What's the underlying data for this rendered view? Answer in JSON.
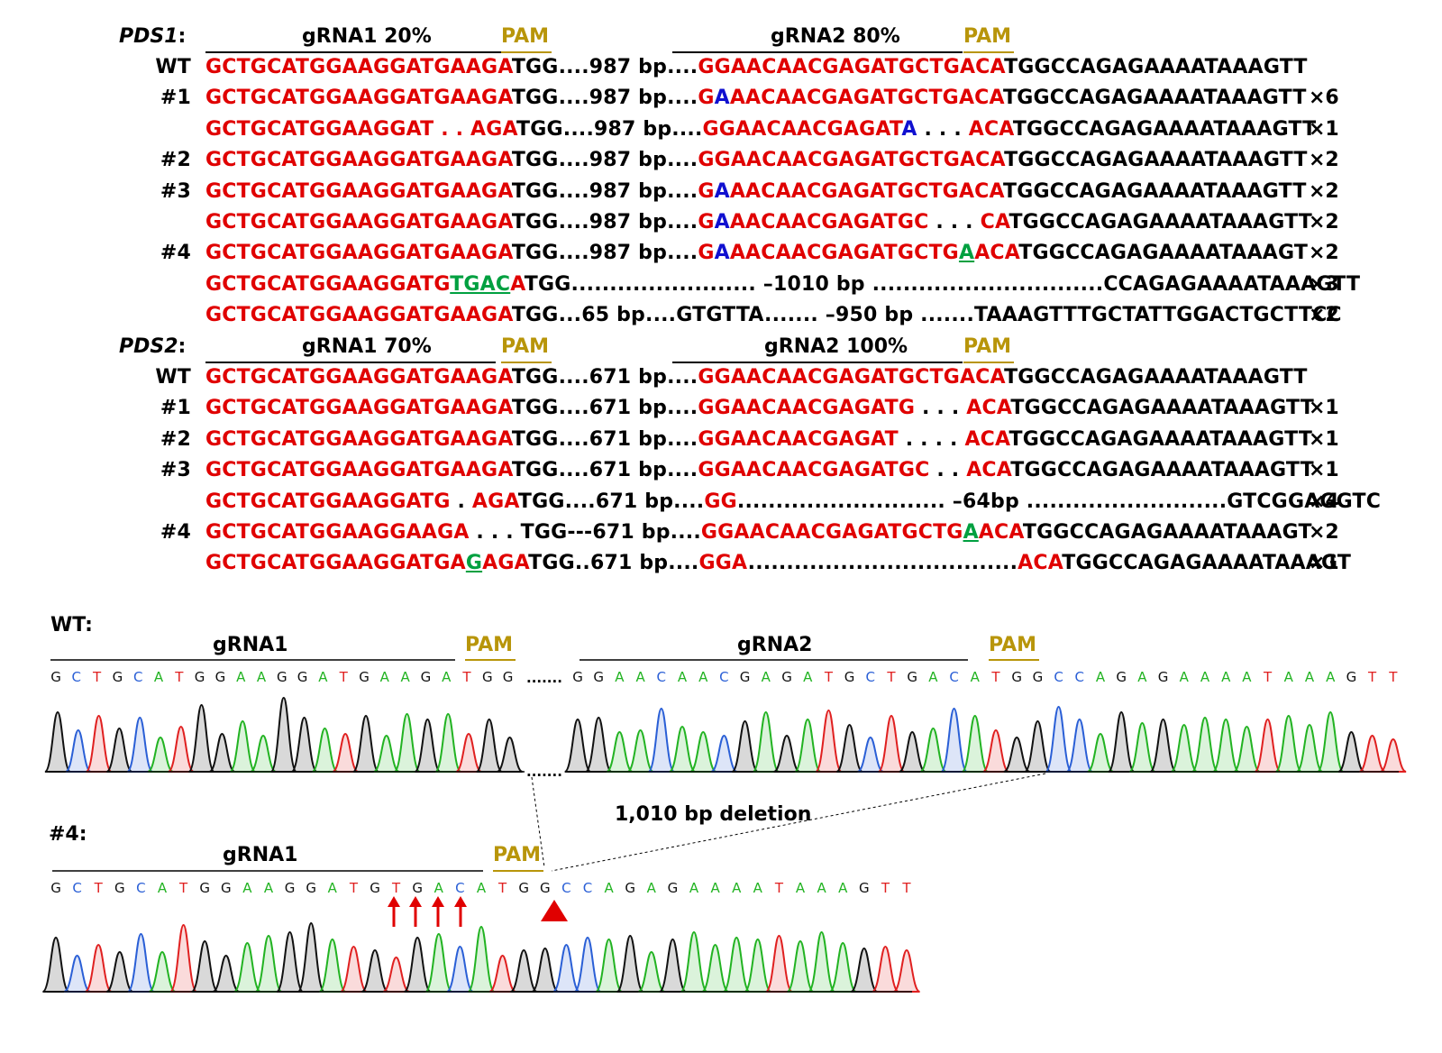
{
  "pds1": {
    "gene": "PDS1",
    "gene_colon": ":",
    "grna1_label": "gRNA1 20%",
    "grna2_label": "gRNA2 80%",
    "pam": "PAM",
    "rows": [
      {
        "label": "WT",
        "count": "",
        "parts": [
          [
            "r",
            "GCTGCATGGAAGGATGAAGA"
          ],
          [
            "k",
            "TGG....987 bp...."
          ],
          [
            "r",
            "GGAACAACGAGATGCTGACA"
          ],
          [
            "k",
            "TGGCCAGAGAAAATAAAGTT"
          ]
        ]
      },
      {
        "label": "#1",
        "count": "×6",
        "parts": [
          [
            "r",
            "G"
          ],
          [
            "b",
            "A"
          ],
          [
            "r",
            "AACAACGAGATGCTGACA"
          ],
          [
            "k",
            "TGGCCAGAGAAAATAAAGTT"
          ]
        ],
        "prefix": [
          [
            "r",
            "GCTGCATGGAAGGATGAAGA"
          ],
          [
            "k",
            "TGG....987 bp...."
          ]
        ]
      },
      {
        "label": "",
        "count": "×1",
        "parts": [
          [
            "r",
            "GCTGCATGGAAGGAT . . AGA"
          ],
          [
            "k",
            "TGG....987 bp...."
          ],
          [
            "r",
            "GGAACAACGAGAT"
          ],
          [
            "b",
            "A"
          ],
          [
            "k",
            " . . . "
          ],
          [
            "r",
            "ACA"
          ],
          [
            "k",
            "TGGCCAGAGAAAATAAAGTT"
          ]
        ]
      },
      {
        "label": "#2",
        "count": "×2",
        "parts": [
          [
            "r",
            "GCTGCATGGAAGGATGAAGA"
          ],
          [
            "k",
            "TGG....987 bp...."
          ],
          [
            "r",
            "GGAACAACGAGATGCTGACA"
          ],
          [
            "k",
            "TGGCCAGAGAAAATAAAGTT"
          ]
        ]
      },
      {
        "label": "#3",
        "count": "×2",
        "parts": [
          [
            "r",
            "GCTGCATGGAAGGATGAAGA"
          ],
          [
            "k",
            "TGG....987 bp...."
          ],
          [
            "r",
            "G"
          ],
          [
            "b",
            "A"
          ],
          [
            "r",
            "AACAACGAGATGCTGACA"
          ],
          [
            "k",
            "TGGCCAGAGAAAATAAAGTT"
          ]
        ]
      },
      {
        "label": "",
        "count": "×2",
        "parts": [
          [
            "r",
            "GCTGCATGGAAGGATGAAGA"
          ],
          [
            "k",
            "TGG....987 bp...."
          ],
          [
            "r",
            "G"
          ],
          [
            "b",
            "A"
          ],
          [
            "r",
            "AACAACGAGATGC"
          ],
          [
            "k",
            " . . . "
          ],
          [
            "r",
            "CA"
          ],
          [
            "k",
            "TGGCCAGAGAAAATAAAGTT"
          ]
        ]
      },
      {
        "label": "#4",
        "count": "×2",
        "parts": [
          [
            "r",
            "GCTGCATGGAAGGATGAAGA"
          ],
          [
            "k",
            "TGG....987 bp...."
          ],
          [
            "r",
            "G"
          ],
          [
            "b",
            "A"
          ],
          [
            "r",
            "AACAACGAGATGCTG"
          ],
          [
            "gu",
            "A"
          ],
          [
            "r",
            "ACA"
          ],
          [
            "k",
            "TGGCCAGAGAAAATAAAGT"
          ]
        ]
      },
      {
        "label": "",
        "count": "×3",
        "parts": [
          [
            "r",
            "GCTGCATGGAAGGATG"
          ],
          [
            "gu",
            "TGAC"
          ],
          [
            "r",
            "A"
          ],
          [
            "k",
            "TGG........................ –1010 bp ..............................CCAGAGAAAATAAAGTT"
          ]
        ]
      },
      {
        "label": "",
        "count": "×2",
        "parts": [
          [
            "r",
            "GCTGCATGGAAGGATGAAGA"
          ],
          [
            "k",
            "TGG...65 bp....GTGTTA....... –950 bp .......TAAAGTTTGCTATTGGACTGCTTCC"
          ]
        ]
      }
    ]
  },
  "pds2": {
    "gene": "PDS2",
    "gene_colon": ":",
    "grna1_label": "gRNA1 70%",
    "grna2_label": "gRNA2 100%",
    "pam": "PAM",
    "rows": [
      {
        "label": "WT",
        "count": "",
        "parts": [
          [
            "r",
            "GCTGCATGGAAGGATGAAGA"
          ],
          [
            "k",
            "TGG....671 bp...."
          ],
          [
            "r",
            "GGAACAACGAGATGCTGACA"
          ],
          [
            "k",
            "TGGCCAGAGAAAATAAAGTT"
          ]
        ]
      },
      {
        "label": "#1",
        "count": "×1",
        "parts": [
          [
            "r",
            "GCTGCATGGAAGGATGAAGA"
          ],
          [
            "k",
            "TGG....671 bp...."
          ],
          [
            "r",
            "GGAACAACGAGATG"
          ],
          [
            "k",
            " . . . "
          ],
          [
            "r",
            "ACA"
          ],
          [
            "k",
            "TGGCCAGAGAAAATAAAGTT"
          ]
        ]
      },
      {
        "label": "#2",
        "count": "×1",
        "parts": [
          [
            "r",
            "GCTGCATGGAAGGATGAAGA"
          ],
          [
            "k",
            "TGG....671 bp...."
          ],
          [
            "r",
            "GGAACAACGAGAT"
          ],
          [
            "k",
            " . . . . "
          ],
          [
            "r",
            "ACA"
          ],
          [
            "k",
            "TGGCCAGAGAAAATAAAGTT"
          ]
        ]
      },
      {
        "label": "#3",
        "count": "×1",
        "parts": [
          [
            "r",
            "GCTGCATGGAAGGATGAAGA"
          ],
          [
            "k",
            "TGG....671 bp...."
          ],
          [
            "r",
            "GGAACAACGAGATGC"
          ],
          [
            "k",
            " . . "
          ],
          [
            "r",
            "ACA"
          ],
          [
            "k",
            "TGGCCAGAGAAAATAAAGTT"
          ]
        ]
      },
      {
        "label": "",
        "count": "×4",
        "parts": [
          [
            "r",
            "GCTGCATGGAAGGATG"
          ],
          [
            "k",
            " . "
          ],
          [
            "r",
            "AGA"
          ],
          [
            "k",
            "TGG....671 bp...."
          ],
          [
            "r",
            "GG"
          ],
          [
            "k",
            "........................... –64bp ..........................GTCGGAGGTC"
          ]
        ]
      },
      {
        "label": "#4",
        "count": "×2",
        "parts": [
          [
            "r",
            "GCTGCATGGAAGGAAGA"
          ],
          [
            "k",
            " . . . TGG---671 bp...."
          ],
          [
            "r",
            "GGAACAACGAGATGCTG"
          ],
          [
            "gu",
            "A"
          ],
          [
            "r",
            "ACA"
          ],
          [
            "k",
            "TGGCCAGAGAAAATAAAGT"
          ]
        ]
      },
      {
        "label": "",
        "count": "×1",
        "parts": [
          [
            "r",
            "GCTGCATGGAAGGATGA"
          ],
          [
            "gu",
            "G"
          ],
          [
            "r",
            "AGA"
          ],
          [
            "k",
            "TGG..671 bp...."
          ],
          [
            "r",
            "GGA"
          ],
          [
            "k",
            "..................................."
          ],
          [
            "r",
            "ACA"
          ],
          [
            "k",
            "TGGCCAGAGAAAATAAAGT"
          ]
        ]
      }
    ]
  },
  "wt_trace": {
    "label": "WT:",
    "grna1": "gRNA1",
    "grna2": "gRNA2",
    "pam": "PAM",
    "seq_left": "GCTGCATGGAAGGATGAAGATGG",
    "ellipsis": ".......",
    "seq_right": "GGAACAACGAGATGCTGACATGGCCAGAGAAAATAAAGTT",
    "gap_dots": "......."
  },
  "mut_trace": {
    "label": "#4:",
    "grna1": "gRNA1",
    "pam": "PAM",
    "seq": "GCTGCATGGAAGGATGTGACATGGCCAGAGAAAATAAAGTT",
    "deletion_label": "1,010 bp deletion"
  },
  "colors": {
    "red": "#e00000",
    "blue": "#1010d0",
    "green": "#00a040",
    "pam": "#b8950a",
    "trace_A": "#22b322",
    "trace_C": "#2a5fd6",
    "trace_G": "#111111",
    "trace_T": "#e02020"
  }
}
